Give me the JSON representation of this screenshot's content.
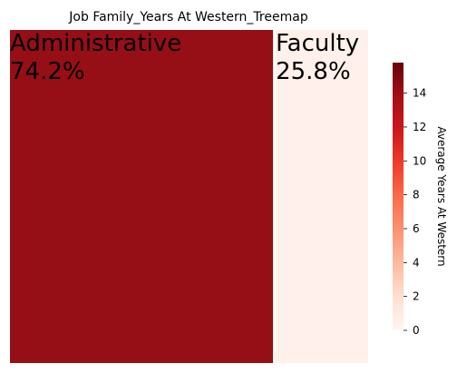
{
  "chart_data": {
    "type": "treemap",
    "title": "Job Family_Years At Western_Treemap",
    "tiles": [
      {
        "label": "Administrative",
        "percent_text": "74.2%",
        "share": 0.742,
        "color_value": 15.8,
        "color": "#960f16"
      },
      {
        "label": "Faculty",
        "percent_text": "25.8%",
        "share": 0.258,
        "color_value": 0.0,
        "color": "#fff0eb"
      }
    ],
    "colorbar": {
      "label": "Average Years At Western",
      "vmin": 0,
      "vmax": 15.8,
      "ticks": [
        "0",
        "2",
        "4",
        "6",
        "8",
        "10",
        "12",
        "14"
      ],
      "colormap": [
        "#fff5f0",
        "#fee0d2",
        "#fcbba1",
        "#fc9272",
        "#fb6a4a",
        "#ef3b2c",
        "#cb181d",
        "#a50f15",
        "#67000d"
      ]
    }
  }
}
